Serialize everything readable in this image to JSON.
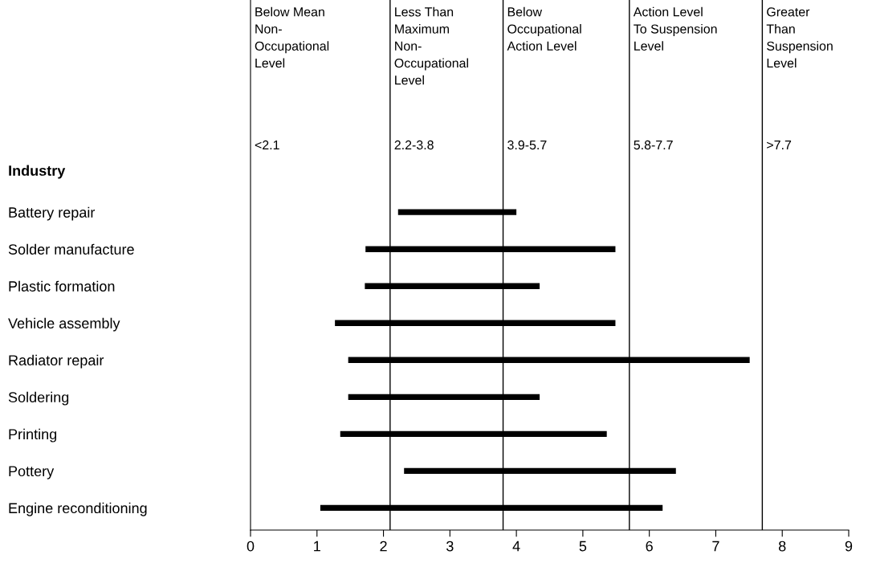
{
  "chart_data": {
    "type": "bar",
    "orientation": "horizontal",
    "ylabel": "Industry",
    "categories": [
      "Battery repair",
      "Solder manufacture",
      "Plastic formation",
      "Vehicle assembly",
      "Radiator repair",
      "Soldering",
      "Printing",
      "Pottery",
      "Engine reconditioning"
    ],
    "base": [
      2.22,
      1.73,
      1.72,
      1.27,
      1.47,
      1.47,
      1.35,
      2.31,
      1.05
    ],
    "values": [
      1.78,
      3.76,
      2.63,
      4.22,
      6.04,
      2.88,
      4.01,
      4.09,
      5.15
    ],
    "color": "#000000",
    "xlim": [
      0,
      9
    ],
    "xticks": [
      0,
      1,
      2,
      3,
      4,
      5,
      6,
      7,
      8,
      9
    ],
    "grid": false,
    "ref_lines": [
      {
        "axis": "x",
        "value": 2.1,
        "color": "#000000"
      },
      {
        "axis": "x",
        "value": 3.8,
        "color": "#000000"
      },
      {
        "axis": "x",
        "value": 5.7,
        "color": "#000000"
      },
      {
        "axis": "x",
        "value": 7.7,
        "color": "#000000"
      }
    ],
    "annotations": [
      "Below Mean\nNon-\nOccupational\nLevel",
      "<2.1",
      {
        "text": "Less Than\nMaximum\nNon-\nOccupational\nLevel",
        "x": 2.1
      },
      {
        "text": "2.2-3.8",
        "x": 2.1
      },
      {
        "text": "Below\nOccupational\nAction Level",
        "x": 3.8
      },
      {
        "text": "3.9-5.7",
        "x": 3.8
      },
      {
        "text": "Action Level\nTo Suspension\nLevel",
        "x": 5.7
      },
      {
        "text": "5.8-7.7",
        "x": 5.7
      },
      {
        "text": "Greater\nThan\nSuspension\nLevel",
        "x": 7.7
      },
      {
        "text": ">7.7",
        "x": 7.7
      }
    ]
  }
}
